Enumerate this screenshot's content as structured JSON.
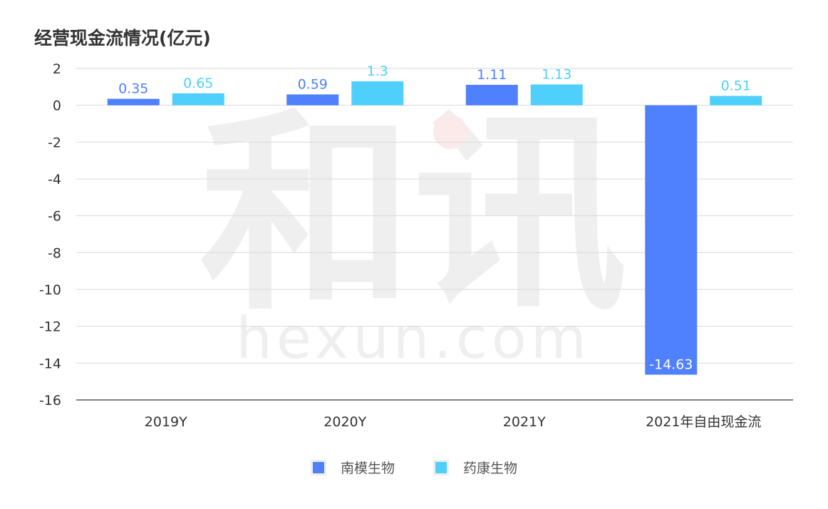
{
  "title": "经营现金流情况(亿元)",
  "watermark": {
    "main": "和讯",
    "sub": "hexun.com"
  },
  "colors": {
    "series1": "#4F80FD",
    "series2": "#4FD0FC",
    "grid": "#d9d9d9",
    "axis": "#555555",
    "text": "#333333"
  },
  "legend": [
    {
      "label": "南模生物",
      "color": "#4F80FD"
    },
    {
      "label": "药康生物",
      "color": "#4FD0FC"
    }
  ],
  "chart_data": {
    "type": "bar",
    "title": "经营现金流情况(亿元)",
    "xlabel": "",
    "ylabel": "",
    "categories": [
      "2019Y",
      "2020Y",
      "2021Y",
      "2021年自由现金流"
    ],
    "series": [
      {
        "name": "南模生物",
        "values": [
          0.35,
          0.59,
          1.11,
          -14.63
        ],
        "labels": [
          "0.35",
          "0.59",
          "1.11",
          "-14.63"
        ]
      },
      {
        "name": "药康生物",
        "values": [
          0.65,
          1.3,
          1.13,
          0.51
        ],
        "labels": [
          "0.65",
          "1.3",
          "1.13",
          "0.51"
        ]
      }
    ],
    "yticks": [
      2,
      0,
      -2,
      -4,
      -6,
      -8,
      -10,
      -12,
      -14,
      -16
    ],
    "ylim": [
      -16,
      2
    ],
    "grid": true,
    "legend_position": "bottom"
  }
}
